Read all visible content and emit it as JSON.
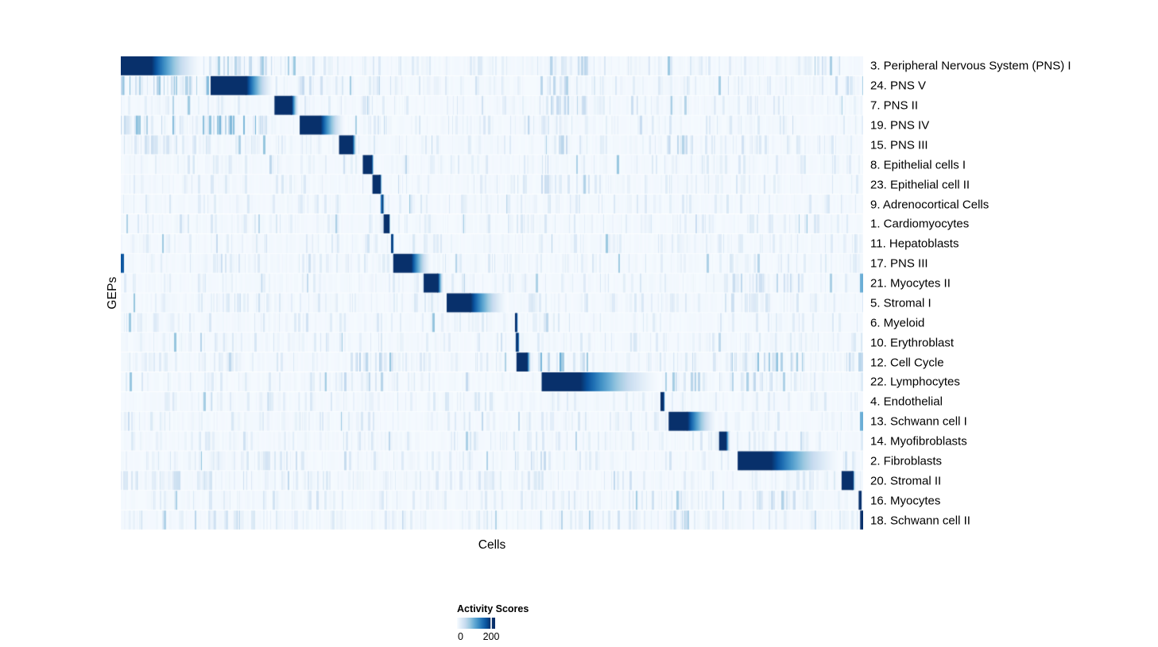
{
  "chart_data": {
    "type": "heatmap",
    "title": "",
    "xlabel": "Cells",
    "ylabel": "GEPs",
    "grid": false,
    "colorbar": {
      "title": "Activity Scores",
      "min_label": "0",
      "max_label": "200",
      "min_value": 0,
      "max_value": 200,
      "position": "bottom-center"
    },
    "colormap_stops": [
      "#f7fbff",
      "#deebf7",
      "#c6dbef",
      "#9ecae1",
      "#6baed6",
      "#4292c6",
      "#2171b5",
      "#08519c",
      "#08306b"
    ],
    "noise_seed": 42,
    "rows_note": "Each GEP row has one dominant high-activity cell block (start/solid_end/fade_end as fractions of the cell axis, peak = activity/200 capped at 1) plus noisy vertical streak clusters [start,end,strength].",
    "rows": [
      {
        "label": "3. Peripheral Nervous System (PNS) I",
        "block": {
          "start": 0.0,
          "solid_end": 0.041,
          "fade_end": 0.11,
          "peak": 1.0
        },
        "clusters": [
          [
            0.123,
            0.204,
            0.35
          ],
          [
            0.241,
            0.277,
            0.3
          ],
          [
            0.565,
            0.63,
            0.28
          ]
        ]
      },
      {
        "label": "24. PNS V",
        "block": {
          "start": 0.121,
          "solid_end": 0.169,
          "fade_end": 0.207,
          "peak": 1.0
        },
        "clusters": [
          [
            0.0,
            0.121,
            0.42
          ],
          [
            0.241,
            0.277,
            0.22
          ],
          [
            0.565,
            0.6,
            0.3
          ]
        ]
      },
      {
        "label": "7. PNS II",
        "block": {
          "start": 0.207,
          "solid_end": 0.23,
          "fade_end": 0.24,
          "peak": 1.0
        },
        "clusters": [
          [
            0.565,
            0.63,
            0.3
          ],
          [
            0.735,
            0.76,
            0.35
          ]
        ]
      },
      {
        "label": "19. PNS IV",
        "block": {
          "start": 0.241,
          "solid_end": 0.269,
          "fade_end": 0.303,
          "peak": 1.0
        },
        "clusters": [
          [
            0.0,
            0.121,
            0.45
          ],
          [
            0.123,
            0.204,
            0.45
          ],
          [
            0.33,
            0.365,
            0.22
          ]
        ]
      },
      {
        "label": "15. PNS III",
        "block": {
          "start": 0.294,
          "solid_end": 0.312,
          "fade_end": 0.318,
          "peak": 1.0
        },
        "clusters": [
          [
            0.0,
            0.121,
            0.16
          ],
          [
            0.565,
            0.6,
            0.42
          ],
          [
            0.735,
            0.77,
            0.3
          ]
        ]
      },
      {
        "label": "8. Epithelial cells I",
        "block": {
          "start": 0.326,
          "solid_end": 0.338,
          "fade_end": 0.341,
          "peak": 1.0
        },
        "clusters": [
          [
            0.565,
            0.592,
            0.45
          ]
        ]
      },
      {
        "label": "23. Epithelial cell II",
        "block": {
          "start": 0.339,
          "solid_end": 0.349,
          "fade_end": 0.352,
          "peak": 1.0
        },
        "clusters": [
          [
            0.565,
            0.6,
            0.22
          ]
        ]
      },
      {
        "label": "9. Adrenocortical Cells",
        "block": {
          "start": 0.35,
          "solid_end": 0.353,
          "fade_end": 0.355,
          "peak": 0.75
        },
        "clusters": []
      },
      {
        "label": "1. Cardiomyocytes",
        "block": {
          "start": 0.354,
          "solid_end": 0.361,
          "fade_end": 0.363,
          "peak": 1.0
        },
        "clusters": []
      },
      {
        "label": "11. Hepatoblasts",
        "block": {
          "start": 0.364,
          "solid_end": 0.366,
          "fade_end": 0.368,
          "peak": 0.9
        },
        "clusters": []
      },
      {
        "label": "17. PNS III",
        "block": {
          "start": 0.367,
          "solid_end": 0.391,
          "fade_end": 0.419,
          "peak": 1.0
        },
        "clusters": [
          [
            0.123,
            0.2,
            0.22
          ]
        ],
        "extra": [
          [
            0.0,
            0.004,
            0.85
          ]
        ]
      },
      {
        "label": "21. Myocytes II",
        "block": {
          "start": 0.408,
          "solid_end": 0.427,
          "fade_end": 0.435,
          "peak": 1.0
        },
        "clusters": [
          [
            0.82,
            0.92,
            0.25
          ]
        ],
        "extra": [
          [
            0.995,
            1.0,
            0.5
          ]
        ]
      },
      {
        "label": "5. Stromal I",
        "block": {
          "start": 0.439,
          "solid_end": 0.471,
          "fade_end": 0.522,
          "peak": 1.0
        },
        "clusters": [
          [
            0.123,
            0.2,
            0.2
          ],
          [
            0.82,
            0.87,
            0.2
          ]
        ]
      },
      {
        "label": "6. Myeloid",
        "block": {
          "start": 0.531,
          "solid_end": 0.533,
          "fade_end": 0.535,
          "peak": 1.0
        },
        "clusters": []
      },
      {
        "label": "10. Erythroblast",
        "block": {
          "start": 0.532,
          "solid_end": 0.535,
          "fade_end": 0.537,
          "peak": 0.95
        },
        "clusters": []
      },
      {
        "label": "12. Cell Cycle",
        "block": {
          "start": 0.533,
          "solid_end": 0.547,
          "fade_end": 0.553,
          "peak": 1.0
        },
        "clusters": [
          [
            0.294,
            0.365,
            0.3
          ],
          [
            0.565,
            0.63,
            0.5
          ],
          [
            0.82,
            0.92,
            0.4
          ],
          [
            0.965,
            1.0,
            0.3
          ]
        ]
      },
      {
        "label": "22. Lymphocytes",
        "block": {
          "start": 0.567,
          "solid_end": 0.619,
          "fade_end": 0.729,
          "peak": 1.0
        },
        "clusters": [
          [
            0.294,
            0.365,
            0.35
          ],
          [
            0.73,
            0.78,
            0.35
          ],
          [
            0.82,
            0.9,
            0.3
          ]
        ]
      },
      {
        "label": "4. Endothelial",
        "block": {
          "start": 0.727,
          "solid_end": 0.731,
          "fade_end": 0.733,
          "peak": 1.0
        },
        "clusters": []
      },
      {
        "label": "13. Schwann cell I",
        "block": {
          "start": 0.738,
          "solid_end": 0.763,
          "fade_end": 0.804,
          "peak": 1.0
        },
        "clusters": [
          [
            0.0,
            0.01,
            0.3
          ]
        ],
        "extra": [
          [
            0.995,
            1.0,
            0.5
          ]
        ]
      },
      {
        "label": "14. Myofibroblasts",
        "block": {
          "start": 0.806,
          "solid_end": 0.815,
          "fade_end": 0.821,
          "peak": 1.0
        },
        "clusters": []
      },
      {
        "label": "2. Fibroblasts",
        "block": {
          "start": 0.831,
          "solid_end": 0.876,
          "fade_end": 0.972,
          "peak": 1.0
        },
        "clusters": [
          [
            0.123,
            0.2,
            0.15
          ],
          [
            0.54,
            0.58,
            0.25
          ]
        ]
      },
      {
        "label": "20. Stromal II",
        "block": {
          "start": 0.971,
          "solid_end": 0.986,
          "fade_end": 0.989,
          "peak": 1.0
        },
        "clusters": [
          [
            0.0,
            0.121,
            0.2
          ]
        ]
      },
      {
        "label": "16. Myocytes",
        "block": {
          "start": 0.994,
          "solid_end": 0.997,
          "fade_end": 0.998,
          "peak": 1.0
        },
        "clusters": [
          [
            0.73,
            0.78,
            0.3
          ],
          [
            0.85,
            0.92,
            0.2
          ]
        ]
      },
      {
        "label": "18. Schwann cell II",
        "block": {
          "start": 0.996,
          "solid_end": 1.0,
          "fade_end": 1.0,
          "peak": 1.0
        },
        "clusters": [
          [
            0.123,
            0.2,
            0.2
          ],
          [
            0.73,
            0.78,
            0.35
          ]
        ]
      }
    ]
  }
}
